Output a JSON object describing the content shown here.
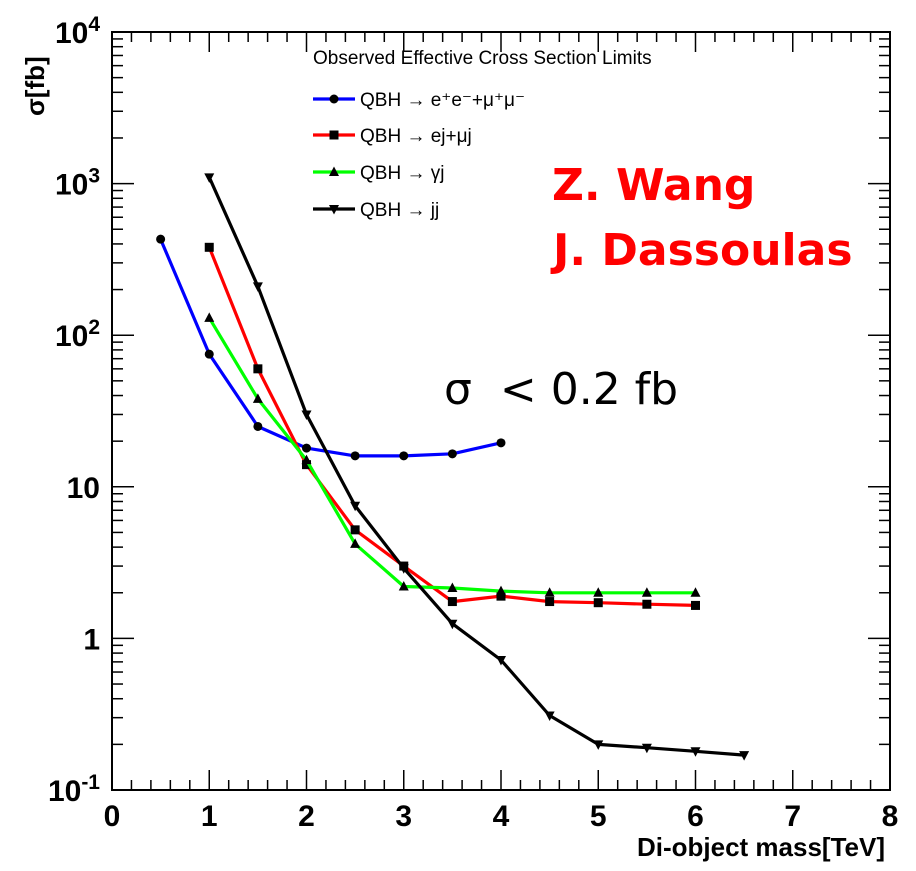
{
  "chart_data": {
    "type": "line",
    "legend_title": "Observed Effective Cross Section Limits",
    "xlabel": "Di-object mass[TeV]",
    "ylabel": "σ[fb]",
    "xlim": [
      0,
      8
    ],
    "ylim": [
      0.1,
      10000
    ],
    "yscale": "log",
    "grid": false,
    "legend_position": "top-center",
    "x_ticks": [
      "0",
      "1",
      "2",
      "3",
      "4",
      "5",
      "6",
      "7",
      "8"
    ],
    "y_ticks": [
      {
        "value": 0.1,
        "base": "10",
        "exp": "-1"
      },
      {
        "value": 1,
        "label": "1"
      },
      {
        "value": 10,
        "label": "10"
      },
      {
        "value": 100,
        "base": "10",
        "exp": "2"
      },
      {
        "value": 1000,
        "base": "10",
        "exp": "3"
      },
      {
        "value": 10000,
        "base": "10",
        "exp": "4"
      }
    ],
    "series": [
      {
        "name": "QBH → e⁺e⁻+μ⁺μ⁻",
        "color": "#0000ff",
        "marker": "circle",
        "x": [
          0.5,
          1.0,
          1.5,
          2.0,
          2.5,
          3.0,
          3.5,
          4.0
        ],
        "y": [
          430,
          75,
          25,
          18,
          16,
          16,
          16.5,
          19.5
        ]
      },
      {
        "name": "QBH → ej+μj",
        "color": "#ff0000",
        "marker": "square",
        "x": [
          1.0,
          1.5,
          2.0,
          2.5,
          3.0,
          3.5,
          4.0,
          4.5,
          5.0,
          5.5,
          6.0
        ],
        "y": [
          380,
          60,
          14,
          5.2,
          3.0,
          1.75,
          1.9,
          1.75,
          1.72,
          1.68,
          1.65
        ]
      },
      {
        "name": "QBH → γj",
        "color": "#00ff00",
        "marker": "triangle-up",
        "x": [
          1.0,
          1.5,
          2.0,
          2.5,
          3.0,
          3.5,
          4.0,
          4.5,
          5.0,
          5.5,
          6.0
        ],
        "y": [
          130,
          38,
          15,
          4.2,
          2.2,
          2.15,
          2.05,
          2.0,
          2.0,
          2.0,
          2.0
        ]
      },
      {
        "name": "QBH → jj",
        "color": "#000000",
        "marker": "triangle-down",
        "x": [
          1.0,
          1.5,
          2.0,
          2.5,
          3.0,
          3.5,
          4.0,
          4.5,
          5.0,
          5.5,
          6.0,
          6.5
        ],
        "y": [
          1100,
          210,
          30,
          7.5,
          2.9,
          1.25,
          0.72,
          0.31,
          0.2,
          0.19,
          0.18,
          0.17
        ]
      }
    ],
    "annotations": [
      {
        "text": "Z. Wang",
        "color": "#ff0000"
      },
      {
        "text": "J. Dassoulas",
        "color": "#ff0000"
      },
      {
        "text": "σ  < 0.2 fb",
        "color": "#000000"
      }
    ]
  }
}
